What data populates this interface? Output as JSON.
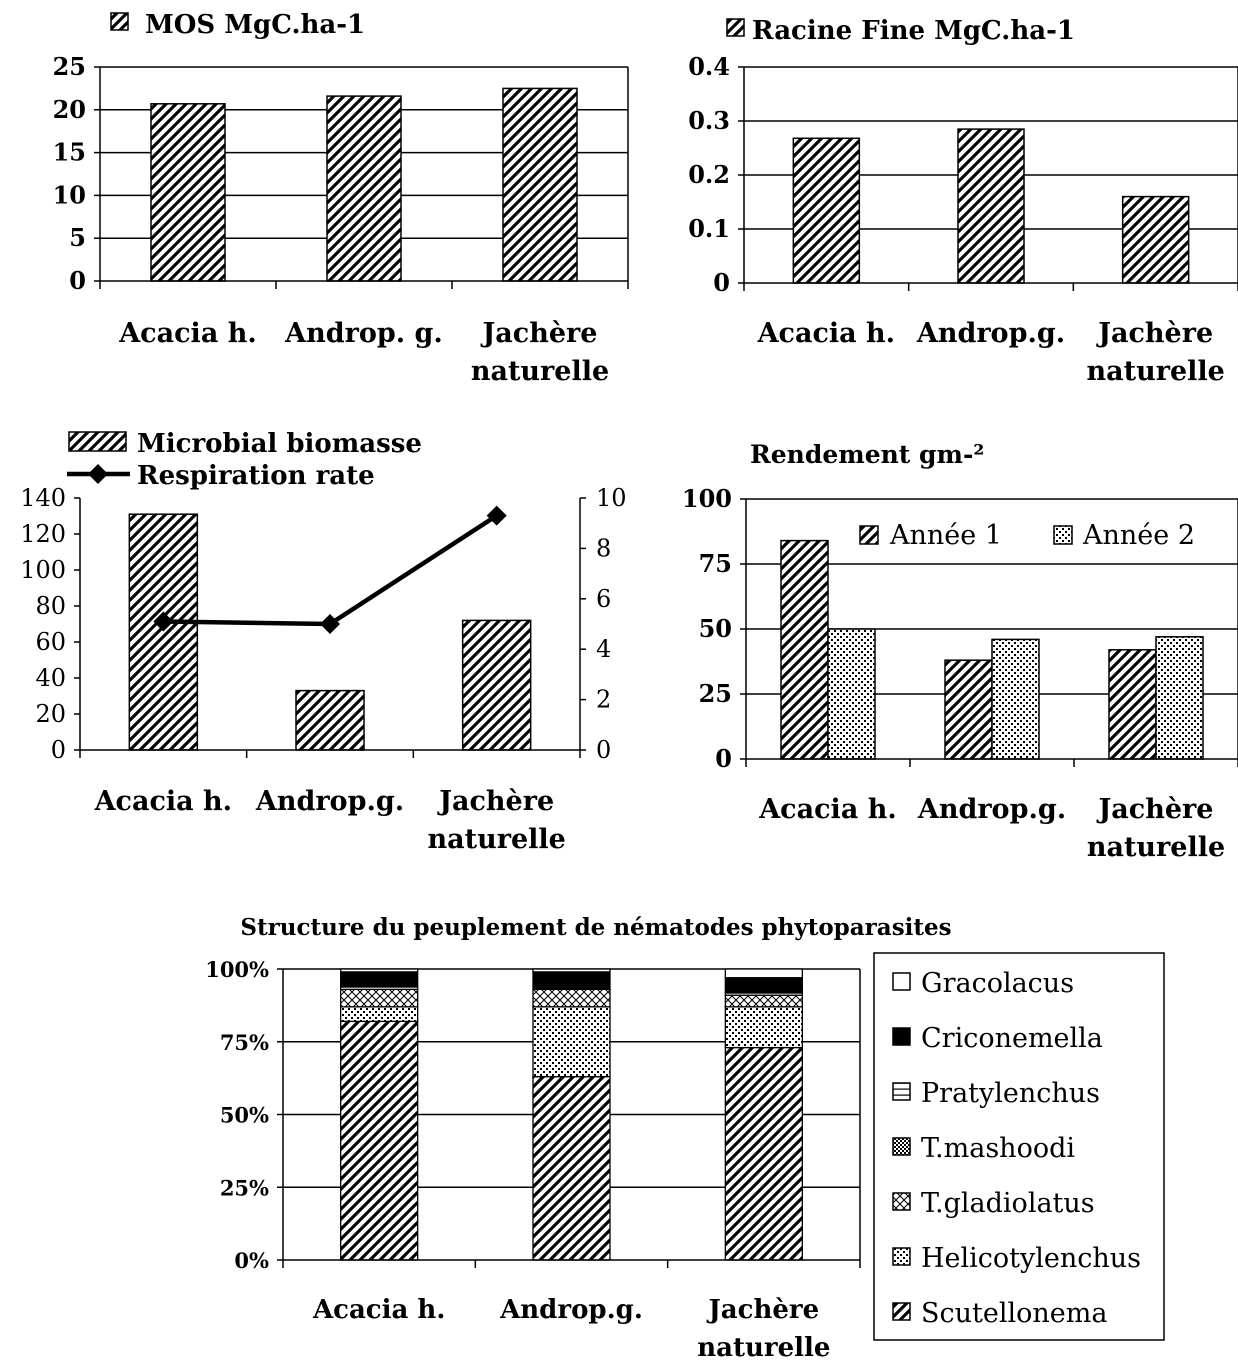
{
  "colors": {
    "ink": "#000000",
    "background": "#ffffff"
  },
  "pattern_names": {
    "hatch": "diagonal-hatch",
    "dots": "dot-stipple",
    "cross": "cross-hatch",
    "grid": "checker",
    "solid": "solid-black",
    "hline": "horizontal-line",
    "empty": "empty-white"
  },
  "chart_data": [
    {
      "id": "mos",
      "type": "bar",
      "categories": [
        "Acacia h.",
        "Androp. g.",
        "Jachère|naturelle"
      ],
      "series": [
        {
          "name": "MOS MgC.ha-1",
          "values": [
            20.7,
            21.6,
            22.5
          ],
          "pattern": "hatch"
        }
      ],
      "yticks": [
        "0",
        "5",
        "10",
        "15",
        "20",
        "25"
      ],
      "ylim": [
        0,
        25
      ],
      "grid": true,
      "legend": "top-left"
    },
    {
      "id": "racine",
      "type": "bar",
      "categories": [
        "Acacia h.",
        "Androp.g.",
        "Jachère|naturelle"
      ],
      "series": [
        {
          "name": "Racine Fine MgC.ha-1",
          "values": [
            0.268,
            0.285,
            0.16
          ],
          "pattern": "hatch"
        }
      ],
      "yticks": [
        "0",
        "0.1",
        "0.2",
        "0.3",
        "0.4"
      ],
      "ylim": [
        0,
        0.4
      ],
      "grid": true,
      "legend": "top-left"
    },
    {
      "id": "micro",
      "type": "bar",
      "categories": [
        "Acacia h.",
        "Androp.g.",
        "Jachère|naturelle"
      ],
      "series": [
        {
          "name": "Microbial biomasse",
          "values": [
            131,
            33,
            72
          ],
          "pattern": "hatch",
          "axis": "left"
        },
        {
          "name": "Respiration rate",
          "kind": "line",
          "values": [
            5.1,
            5.0,
            9.3
          ],
          "axis": "right"
        }
      ],
      "yticks": [
        "0",
        "20",
        "40",
        "60",
        "80",
        "100",
        "120",
        "140"
      ],
      "ylim": [
        0,
        140
      ],
      "y2ticks": [
        "0",
        "2",
        "4",
        "6",
        "8",
        "10"
      ],
      "y2lim": [
        0,
        10
      ],
      "grid": false,
      "legend": "top-left"
    },
    {
      "id": "rendement",
      "type": "bar",
      "title": "Rendement gm-²",
      "categories": [
        "Acacia h.",
        "Androp.g.",
        "Jachère|naturelle"
      ],
      "series": [
        {
          "name": "Année 1",
          "values": [
            84,
            38,
            42
          ],
          "pattern": "hatch"
        },
        {
          "name": "Année 2",
          "values": [
            50,
            46,
            47
          ],
          "pattern": "dots"
        }
      ],
      "yticks": [
        "0",
        "25",
        "50",
        "75",
        "100"
      ],
      "ylim": [
        0,
        100
      ],
      "grid": true,
      "legend": "inside-top"
    },
    {
      "id": "nematodes",
      "type": "bar",
      "stacked_percent": true,
      "title": "Structure du peuplement de nématodes phytoparasites",
      "categories": [
        "Acacia h.",
        "Androp.g.",
        "Jachère|naturelle"
      ],
      "series": [
        {
          "name": "Scutellonema",
          "values": [
            82,
            63,
            73
          ],
          "pattern": "hatch"
        },
        {
          "name": "Helicotylenchus",
          "values": [
            5,
            24,
            14
          ],
          "pattern": "dots"
        },
        {
          "name": "T.gladiolatus",
          "values": [
            6,
            6,
            4
          ],
          "pattern": "cross"
        },
        {
          "name": "T.mashoodi",
          "values": [
            0,
            0,
            0
          ],
          "pattern": "grid"
        },
        {
          "name": "Pratylenchus",
          "values": [
            1,
            0,
            1
          ],
          "pattern": "hline"
        },
        {
          "name": "Criconemella",
          "values": [
            5,
            6,
            5
          ],
          "pattern": "solid"
        },
        {
          "name": "Gracolacus",
          "values": [
            1,
            1,
            3
          ],
          "pattern": "empty"
        }
      ],
      "yticks": [
        "0%",
        "25%",
        "50%",
        "75%",
        "100%"
      ],
      "ylim": [
        0,
        100
      ],
      "grid": true,
      "legend": "right"
    }
  ]
}
